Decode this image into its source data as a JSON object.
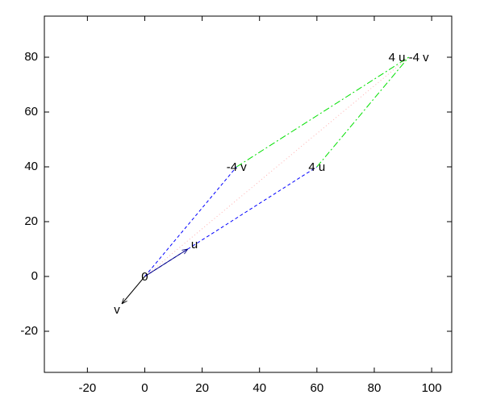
{
  "chart_data": {
    "type": "vector",
    "xlim": [
      -35,
      107
    ],
    "ylim": [
      -35,
      95
    ],
    "xticks": [
      -20,
      0,
      20,
      40,
      60,
      80,
      100
    ],
    "yticks": [
      -20,
      0,
      20,
      40,
      60,
      80
    ],
    "series": [
      {
        "color": "#ffb0b0",
        "style": "dotted",
        "arrow": false,
        "x": [
          0,
          92
        ],
        "y": [
          0,
          80
        ]
      },
      {
        "color": "#0000ff",
        "style": "dashed",
        "arrow": false,
        "x": [
          0,
          60
        ],
        "y": [
          0,
          40
        ]
      },
      {
        "color": "#0000ff",
        "style": "dashed",
        "arrow": false,
        "x": [
          0,
          32
        ],
        "y": [
          0,
          40
        ]
      },
      {
        "color": "#00e000",
        "style": "dashdot",
        "arrow": false,
        "x": [
          60,
          92
        ],
        "y": [
          40,
          80
        ]
      },
      {
        "color": "#00e000",
        "style": "dashdot",
        "arrow": false,
        "x": [
          32,
          92
        ],
        "y": [
          40,
          80
        ]
      },
      {
        "color": "#000080",
        "style": "solid",
        "arrow": true,
        "x": [
          0,
          15
        ],
        "y": [
          0,
          10
        ]
      },
      {
        "color": "#000000",
        "style": "solid",
        "arrow": true,
        "x": [
          0,
          -8
        ],
        "y": [
          0,
          -10
        ]
      }
    ],
    "labels": [
      {
        "text": "0",
        "x": 0,
        "y": 0,
        "position": "center"
      },
      {
        "text": "u",
        "x": 15,
        "y": 10,
        "position": "right"
      },
      {
        "text": "v",
        "x": -8,
        "y": -10,
        "position": "below-left"
      },
      {
        "text": "4 u",
        "x": 60,
        "y": 40,
        "position": "center"
      },
      {
        "text": "-4 v",
        "x": 32,
        "y": 40,
        "position": "center"
      },
      {
        "text": "4 u -4 v",
        "x": 92,
        "y": 80,
        "position": "center"
      }
    ]
  }
}
